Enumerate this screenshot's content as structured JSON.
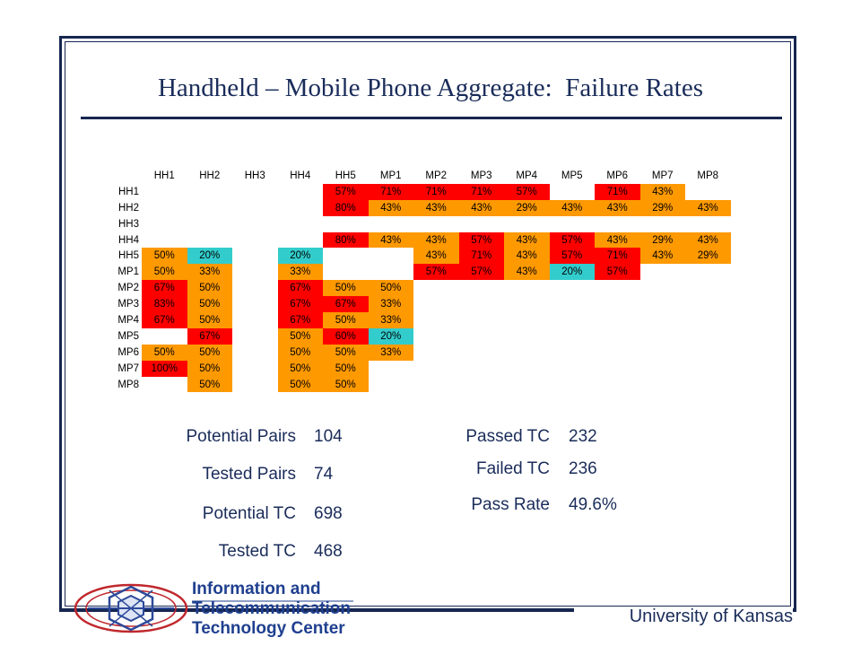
{
  "title": "Handheld – Mobile Phone Aggregate:  Failure Rates",
  "colors": {
    "orange": "#FF9900",
    "red": "#FF0000",
    "cyan": "#33CCCC",
    "navy": "#1A2C5A"
  },
  "matrix": {
    "columns": [
      "HH1",
      "HH2",
      "HH3",
      "HH4",
      "HH5",
      "MP1",
      "MP2",
      "MP3",
      "MP4",
      "MP5",
      "MP6",
      "MP7",
      "MP8"
    ],
    "rows": [
      {
        "label": "HH1",
        "cells": [
          [
            "",
            ""
          ],
          [
            "",
            ""
          ],
          [
            "",
            ""
          ],
          [
            "",
            ""
          ],
          [
            "57%",
            "red"
          ],
          [
            "71%",
            "red"
          ],
          [
            "71%",
            "red"
          ],
          [
            "71%",
            "red"
          ],
          [
            "57%",
            "red"
          ],
          [
            "",
            ""
          ],
          [
            "71%",
            "red"
          ],
          [
            "43%",
            "orange"
          ],
          [
            "",
            ""
          ]
        ]
      },
      {
        "label": "HH2",
        "cells": [
          [
            "",
            ""
          ],
          [
            "",
            ""
          ],
          [
            "",
            ""
          ],
          [
            "",
            ""
          ],
          [
            "80%",
            "red"
          ],
          [
            "43%",
            "orange"
          ],
          [
            "43%",
            "orange"
          ],
          [
            "43%",
            "orange"
          ],
          [
            "29%",
            "orange"
          ],
          [
            "43%",
            "orange"
          ],
          [
            "43%",
            "orange"
          ],
          [
            "29%",
            "orange"
          ],
          [
            "43%",
            "orange"
          ]
        ]
      },
      {
        "label": "HH3",
        "cells": [
          [
            "",
            ""
          ],
          [
            "",
            ""
          ],
          [
            "",
            ""
          ],
          [
            "",
            ""
          ],
          [
            "",
            ""
          ],
          [
            "",
            ""
          ],
          [
            "",
            ""
          ],
          [
            "",
            ""
          ],
          [
            "",
            ""
          ],
          [
            "",
            ""
          ],
          [
            "",
            ""
          ],
          [
            "",
            ""
          ],
          [
            "",
            ""
          ]
        ]
      },
      {
        "label": "HH4",
        "cells": [
          [
            "",
            ""
          ],
          [
            "",
            ""
          ],
          [
            "",
            ""
          ],
          [
            "",
            ""
          ],
          [
            "80%",
            "red"
          ],
          [
            "43%",
            "orange"
          ],
          [
            "43%",
            "orange"
          ],
          [
            "57%",
            "red"
          ],
          [
            "43%",
            "orange"
          ],
          [
            "57%",
            "red"
          ],
          [
            "43%",
            "orange"
          ],
          [
            "29%",
            "orange"
          ],
          [
            "43%",
            "orange"
          ]
        ]
      },
      {
        "label": "HH5",
        "cells": [
          [
            "50%",
            "orange"
          ],
          [
            "20%",
            "cyan"
          ],
          [
            "",
            ""
          ],
          [
            "20%",
            "cyan"
          ],
          [
            "",
            ""
          ],
          [
            "",
            ""
          ],
          [
            "43%",
            "orange"
          ],
          [
            "71%",
            "red"
          ],
          [
            "43%",
            "orange"
          ],
          [
            "57%",
            "red"
          ],
          [
            "71%",
            "red"
          ],
          [
            "43%",
            "orange"
          ],
          [
            "29%",
            "orange"
          ]
        ]
      },
      {
        "label": "MP1",
        "cells": [
          [
            "50%",
            "orange"
          ],
          [
            "33%",
            "orange"
          ],
          [
            "",
            ""
          ],
          [
            "33%",
            "orange"
          ],
          [
            "",
            ""
          ],
          [
            "",
            ""
          ],
          [
            "57%",
            "red"
          ],
          [
            "57%",
            "red"
          ],
          [
            "43%",
            "orange"
          ],
          [
            "20%",
            "cyan"
          ],
          [
            "57%",
            "red"
          ],
          [
            "",
            ""
          ],
          [
            "",
            ""
          ]
        ]
      },
      {
        "label": "MP2",
        "cells": [
          [
            "67%",
            "red"
          ],
          [
            "50%",
            "orange"
          ],
          [
            "",
            ""
          ],
          [
            "67%",
            "red"
          ],
          [
            "50%",
            "orange"
          ],
          [
            "50%",
            "orange"
          ],
          [
            "",
            ""
          ],
          [
            "",
            ""
          ],
          [
            "",
            ""
          ],
          [
            "",
            ""
          ],
          [
            "",
            ""
          ],
          [
            "",
            ""
          ],
          [
            "",
            ""
          ]
        ]
      },
      {
        "label": "MP3",
        "cells": [
          [
            "83%",
            "red"
          ],
          [
            "50%",
            "orange"
          ],
          [
            "",
            ""
          ],
          [
            "67%",
            "red"
          ],
          [
            "67%",
            "red"
          ],
          [
            "33%",
            "orange"
          ],
          [
            "",
            ""
          ],
          [
            "",
            ""
          ],
          [
            "",
            ""
          ],
          [
            "",
            ""
          ],
          [
            "",
            ""
          ],
          [
            "",
            ""
          ],
          [
            "",
            ""
          ]
        ]
      },
      {
        "label": "MP4",
        "cells": [
          [
            "67%",
            "red"
          ],
          [
            "50%",
            "orange"
          ],
          [
            "",
            ""
          ],
          [
            "67%",
            "red"
          ],
          [
            "50%",
            "orange"
          ],
          [
            "33%",
            "orange"
          ],
          [
            "",
            ""
          ],
          [
            "",
            ""
          ],
          [
            "",
            ""
          ],
          [
            "",
            ""
          ],
          [
            "",
            ""
          ],
          [
            "",
            ""
          ],
          [
            "",
            ""
          ]
        ]
      },
      {
        "label": "MP5",
        "cells": [
          [
            "",
            ""
          ],
          [
            "67%",
            "red"
          ],
          [
            "",
            ""
          ],
          [
            "50%",
            "orange"
          ],
          [
            "60%",
            "red"
          ],
          [
            "20%",
            "cyan"
          ],
          [
            "",
            ""
          ],
          [
            "",
            ""
          ],
          [
            "",
            ""
          ],
          [
            "",
            ""
          ],
          [
            "",
            ""
          ],
          [
            "",
            ""
          ],
          [
            "",
            ""
          ]
        ]
      },
      {
        "label": "MP6",
        "cells": [
          [
            "50%",
            "orange"
          ],
          [
            "50%",
            "orange"
          ],
          [
            "",
            ""
          ],
          [
            "50%",
            "orange"
          ],
          [
            "50%",
            "orange"
          ],
          [
            "33%",
            "orange"
          ],
          [
            "",
            ""
          ],
          [
            "",
            ""
          ],
          [
            "",
            ""
          ],
          [
            "",
            ""
          ],
          [
            "",
            ""
          ],
          [
            "",
            ""
          ],
          [
            "",
            ""
          ]
        ]
      },
      {
        "label": "MP7",
        "cells": [
          [
            "100%",
            "red"
          ],
          [
            "50%",
            "orange"
          ],
          [
            "",
            ""
          ],
          [
            "50%",
            "orange"
          ],
          [
            "50%",
            "orange"
          ],
          [
            "",
            ""
          ],
          [
            "",
            ""
          ],
          [
            "",
            ""
          ],
          [
            "",
            ""
          ],
          [
            "",
            ""
          ],
          [
            "",
            ""
          ],
          [
            "",
            ""
          ],
          [
            "",
            ""
          ]
        ]
      },
      {
        "label": "MP8",
        "cells": [
          [
            "",
            ""
          ],
          [
            "50%",
            "orange"
          ],
          [
            "",
            ""
          ],
          [
            "50%",
            "orange"
          ],
          [
            "50%",
            "orange"
          ],
          [
            "",
            ""
          ],
          [
            "",
            ""
          ],
          [
            "",
            ""
          ],
          [
            "",
            ""
          ],
          [
            "",
            ""
          ],
          [
            "",
            ""
          ],
          [
            "",
            ""
          ],
          [
            "",
            ""
          ]
        ]
      }
    ]
  },
  "stats_left": [
    {
      "label": "Potential Pairs",
      "value": "104"
    },
    {
      "label": "Tested Pairs",
      "value": "74"
    },
    {
      "label": "Potential TC",
      "value": "698"
    },
    {
      "label": "Tested TC",
      "value": "468"
    }
  ],
  "stats_right": [
    {
      "label": "Passed TC",
      "value": "232"
    },
    {
      "label": "Failed TC",
      "value": "236"
    },
    {
      "label": "Pass Rate",
      "value": "49.6%"
    }
  ],
  "logo": {
    "line1": "Information and",
    "line2": "Telecommunication",
    "line3": "Technology Center"
  },
  "footer": "University of Kansas"
}
